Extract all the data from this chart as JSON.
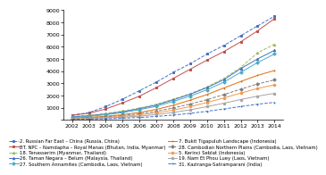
{
  "years": [
    2002,
    2003,
    2004,
    2005,
    2006,
    2007,
    2008,
    2009,
    2010,
    2011,
    2012,
    2013,
    2014
  ],
  "series": [
    {
      "label": "2. Russian Far East – China (Russia, China)",
      "color": "#4472C4",
      "marker": "s",
      "linestyle": "--",
      "values": [
        400,
        600,
        1100,
        1700,
        2400,
        3100,
        3900,
        4600,
        5400,
        6100,
        6900,
        7700,
        8500
      ]
    },
    {
      "label": "BT. NPC – Namdapha – Royal Manas (Bhutan, India, Myanmar)",
      "color": "#C0504D",
      "marker": "s",
      "linestyle": "-",
      "values": [
        380,
        550,
        900,
        1400,
        1950,
        2650,
        3400,
        4150,
        4900,
        5600,
        6400,
        7300,
        8300
      ]
    },
    {
      "label": "18. Tenasserim (Myanmar, Thailand)",
      "color": "#9BBB59",
      "marker": "^",
      "linestyle": "--",
      "values": [
        280,
        380,
        530,
        730,
        980,
        1280,
        1700,
        2150,
        2700,
        3400,
        4300,
        5500,
        6200
      ]
    },
    {
      "label": "26. Taman Negara – Belum (Malaysia, Thailand)",
      "color": "#4472C4",
      "marker": "^",
      "linestyle": "-",
      "values": [
        250,
        340,
        480,
        670,
        920,
        1220,
        1650,
        2100,
        2650,
        3300,
        4200,
        5000,
        5700
      ]
    },
    {
      "label": "27. Southern Annamites (Cambodia, Laos, Vietnam)",
      "color": "#4BACC6",
      "marker": "D",
      "linestyle": "-",
      "values": [
        220,
        300,
        430,
        600,
        840,
        1120,
        1520,
        1950,
        2470,
        3100,
        3900,
        4700,
        5400
      ]
    },
    {
      "label": "7. Bukit Tigapuluh Landscape (Indonesia)",
      "color": "#E36C09",
      "marker": "+",
      "linestyle": "-",
      "values": [
        160,
        210,
        300,
        430,
        620,
        860,
        1200,
        1620,
        2080,
        2620,
        3150,
        3650,
        4050
      ]
    },
    {
      "label": "28. Cambodian Northern Plains (Cambodia, Laos, Vietnam)",
      "color": "#808080",
      "marker": "D",
      "linestyle": "--",
      "values": [
        130,
        175,
        250,
        360,
        510,
        710,
        980,
        1300,
        1660,
        2080,
        2520,
        2950,
        3280
      ]
    },
    {
      "label": "5. Kerinci Seblat (Indonesia)",
      "color": "#F79646",
      "marker": "o",
      "linestyle": "-",
      "values": [
        100,
        140,
        200,
        290,
        415,
        580,
        810,
        1090,
        1430,
        1800,
        2200,
        2580,
        2880
      ]
    },
    {
      "label": "19. Nam Et Phou Luey (Laos, Vietnam)",
      "color": "#A5A5A5",
      "marker": "o",
      "linestyle": "-",
      "values": [
        80,
        108,
        155,
        220,
        310,
        440,
        615,
        830,
        1090,
        1370,
        1670,
        1950,
        2180
      ]
    },
    {
      "label": "31. Kaziranga-Satramparani (India)",
      "color": "#4472C4",
      "marker": "+",
      "linestyle": "--",
      "values": [
        50,
        68,
        98,
        140,
        200,
        285,
        400,
        540,
        710,
        895,
        1100,
        1290,
        1440
      ]
    }
  ],
  "ylim": [
    0,
    9000
  ],
  "yticks": [
    0,
    1000,
    2000,
    3000,
    4000,
    5000,
    6000,
    7000,
    8000,
    9000
  ],
  "background_color": "#FFFFFF",
  "tick_fontsize": 4.5,
  "legend_fontsize": 3.8
}
